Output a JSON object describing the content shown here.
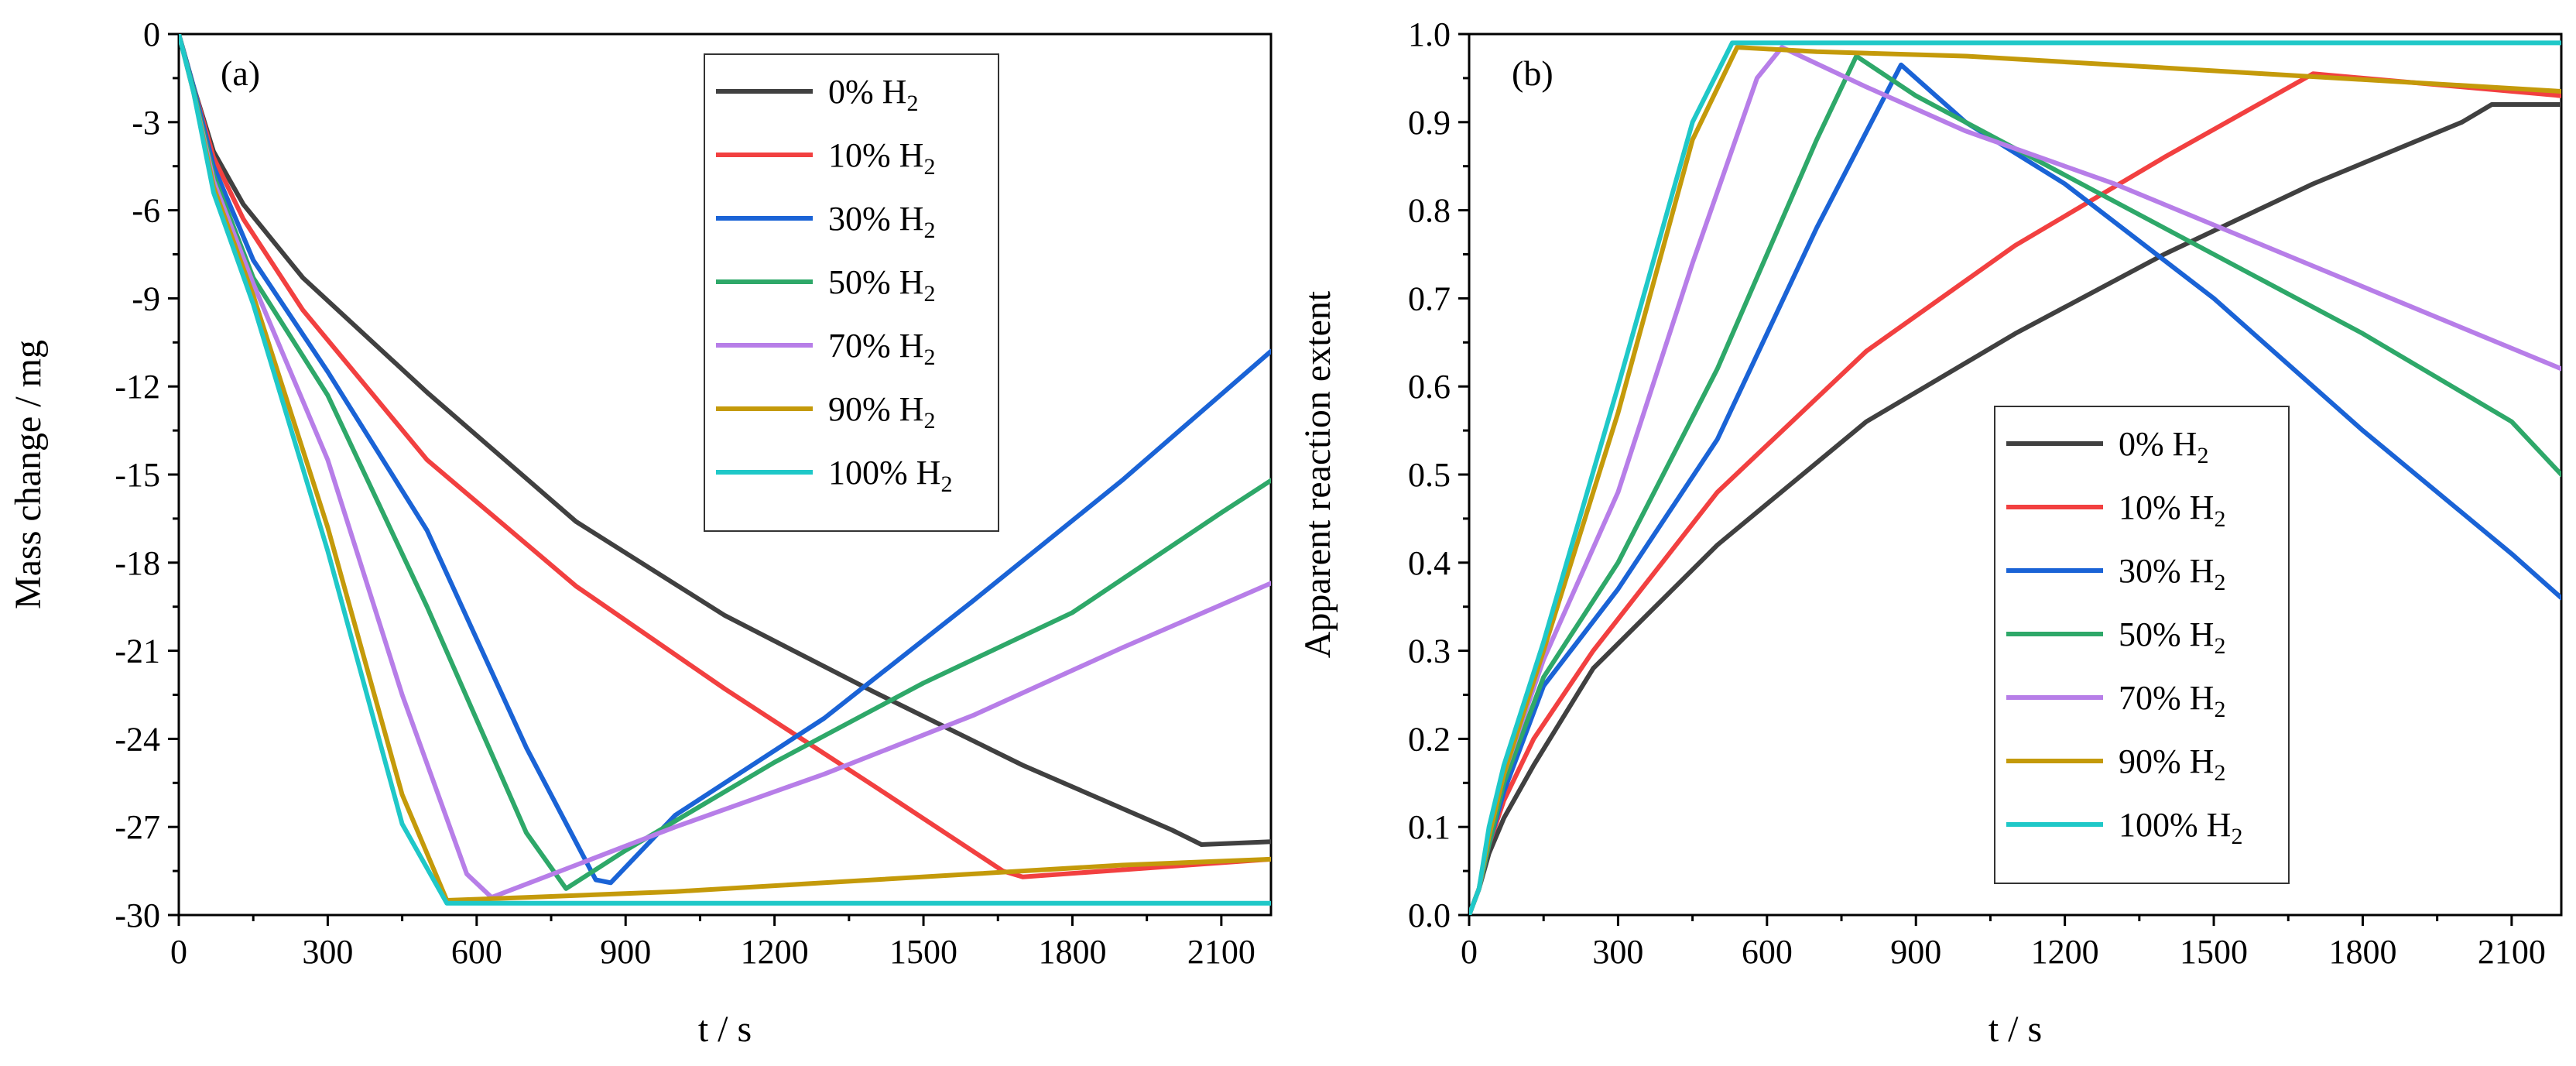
{
  "chart_data": [
    {
      "type": "line",
      "panel_label": "(a)",
      "xlabel": "t / s",
      "ylabel": "Mass change / mg",
      "xlim": [
        0,
        2200
      ],
      "ylim": [
        -30,
        0
      ],
      "xticks": [
        "0",
        "300",
        "600",
        "900",
        "1200",
        "1500",
        "1800",
        "2100"
      ],
      "yticks": [
        "0",
        "-3",
        "-6",
        "-9",
        "-12",
        "-15",
        "-18",
        "-21",
        "-24",
        "-27",
        "-30"
      ],
      "legend_position": "top-right",
      "series": [
        {
          "name": "0% H",
          "subscript": "2",
          "color": "#404040",
          "x": [
            0,
            30,
            70,
            130,
            250,
            500,
            800,
            1100,
            1400,
            1700,
            2000,
            2060,
            2200
          ],
          "y": [
            0,
            -1.8,
            -4.0,
            -5.8,
            -8.3,
            -12.2,
            -16.6,
            -19.8,
            -22.4,
            -24.9,
            -27.1,
            -27.6,
            -27.5
          ]
        },
        {
          "name": "10% H",
          "subscript": "2",
          "color": "#f24040",
          "x": [
            0,
            30,
            70,
            130,
            250,
            500,
            800,
            1100,
            1400,
            1660,
            1700,
            2200
          ],
          "y": [
            0,
            -1.8,
            -4.2,
            -6.3,
            -9.4,
            -14.5,
            -18.8,
            -22.3,
            -25.6,
            -28.5,
            -28.7,
            -28.1
          ]
        },
        {
          "name": "30% H",
          "subscript": "2",
          "color": "#1a63d6",
          "x": [
            0,
            30,
            70,
            150,
            300,
            500,
            700,
            840,
            870,
            1000,
            1300,
            1600,
            1900,
            2200
          ],
          "y": [
            0,
            -1.8,
            -4.5,
            -7.7,
            -11.5,
            -16.9,
            -24.3,
            -28.8,
            -28.9,
            -26.6,
            -23.3,
            -19.3,
            -15.2,
            -10.8
          ]
        },
        {
          "name": "50% H",
          "subscript": "2",
          "color": "#2ea869",
          "x": [
            0,
            30,
            70,
            150,
            300,
            500,
            700,
            780,
            900,
            1200,
            1500,
            1800,
            2100,
            2200
          ],
          "y": [
            0,
            -1.9,
            -4.8,
            -8.3,
            -12.3,
            -19.5,
            -27.2,
            -29.1,
            -27.8,
            -24.8,
            -22.1,
            -19.7,
            -16.3,
            -15.2
          ]
        },
        {
          "name": "70% H",
          "subscript": "2",
          "color": "#b77ee8",
          "x": [
            0,
            30,
            70,
            150,
            300,
            450,
            580,
            630,
            800,
            1000,
            1300,
            1600,
            1900,
            2200
          ],
          "y": [
            0,
            -2.0,
            -5.0,
            -8.5,
            -14.5,
            -22.5,
            -28.6,
            -29.4,
            -28.3,
            -27.0,
            -25.2,
            -23.2,
            -20.9,
            -18.7
          ]
        },
        {
          "name": "90% H",
          "subscript": "2",
          "color": "#c49a0a",
          "x": [
            0,
            30,
            70,
            150,
            300,
            450,
            540,
            700,
            1000,
            1300,
            1600,
            1900,
            2200
          ],
          "y": [
            0,
            -2.0,
            -5.2,
            -8.9,
            -16.8,
            -25.9,
            -29.5,
            -29.4,
            -29.2,
            -28.9,
            -28.6,
            -28.3,
            -28.1
          ]
        },
        {
          "name": "100% H",
          "subscript": "2",
          "color": "#1fc8c8",
          "x": [
            0,
            30,
            70,
            150,
            300,
            450,
            540,
            800,
            1200,
            1600,
            2000,
            2200
          ],
          "y": [
            0,
            -2.0,
            -5.4,
            -9.2,
            -17.6,
            -26.9,
            -29.6,
            -29.6,
            -29.6,
            -29.6,
            -29.6,
            -29.6
          ]
        }
      ]
    },
    {
      "type": "line",
      "panel_label": "(b)",
      "xlabel": "t / s",
      "ylabel": "Apparent reaction extent",
      "xlim": [
        0,
        2200
      ],
      "ylim": [
        0,
        1.0
      ],
      "xticks": [
        "0",
        "300",
        "600",
        "900",
        "1200",
        "1500",
        "1800",
        "2100"
      ],
      "yticks": [
        "0.0",
        "0.1",
        "0.2",
        "0.3",
        "0.4",
        "0.5",
        "0.6",
        "0.7",
        "0.8",
        "0.9",
        "1.0"
      ],
      "legend_position": "lower-center",
      "series": [
        {
          "name": "0% H",
          "subscript": "2",
          "color": "#404040",
          "x": [
            0,
            20,
            40,
            70,
            130,
            250,
            500,
            800,
            1100,
            1400,
            1700,
            2000,
            2060,
            2200
          ],
          "y": [
            0,
            0.03,
            0.07,
            0.11,
            0.17,
            0.28,
            0.42,
            0.56,
            0.66,
            0.75,
            0.83,
            0.9,
            0.92,
            0.92
          ]
        },
        {
          "name": "10% H",
          "subscript": "2",
          "color": "#f24040",
          "x": [
            0,
            20,
            40,
            70,
            130,
            250,
            500,
            800,
            1100,
            1400,
            1700,
            2200
          ],
          "y": [
            0,
            0.03,
            0.08,
            0.13,
            0.2,
            0.3,
            0.48,
            0.64,
            0.76,
            0.86,
            0.955,
            0.93
          ]
        },
        {
          "name": "30% H",
          "subscript": "2",
          "color": "#1a63d6",
          "x": [
            0,
            20,
            40,
            70,
            150,
            300,
            500,
            700,
            870,
            900,
            1000,
            1200,
            1500,
            1800,
            2100,
            2200
          ],
          "y": [
            0,
            0.03,
            0.08,
            0.14,
            0.26,
            0.37,
            0.54,
            0.78,
            0.965,
            0.95,
            0.9,
            0.83,
            0.7,
            0.55,
            0.41,
            0.36
          ]
        },
        {
          "name": "50% H",
          "subscript": "2",
          "color": "#2ea869",
          "x": [
            0,
            20,
            40,
            70,
            150,
            300,
            500,
            700,
            780,
            900,
            1200,
            1500,
            1800,
            2100,
            2200
          ],
          "y": [
            0,
            0.03,
            0.08,
            0.15,
            0.27,
            0.4,
            0.62,
            0.88,
            0.975,
            0.93,
            0.84,
            0.75,
            0.66,
            0.56,
            0.5
          ]
        },
        {
          "name": "70% H",
          "subscript": "2",
          "color": "#b77ee8",
          "x": [
            0,
            20,
            40,
            70,
            150,
            300,
            450,
            580,
            630,
            800,
            1000,
            1300,
            1600,
            1900,
            2200
          ],
          "y": [
            0,
            0.03,
            0.09,
            0.16,
            0.29,
            0.48,
            0.74,
            0.95,
            0.985,
            0.94,
            0.89,
            0.83,
            0.76,
            0.69,
            0.62
          ]
        },
        {
          "name": "90% H",
          "subscript": "2",
          "color": "#c49a0a",
          "x": [
            0,
            20,
            40,
            70,
            150,
            300,
            450,
            540,
            700,
            1000,
            1300,
            1600,
            1900,
            2200
          ],
          "y": [
            0,
            0.03,
            0.09,
            0.16,
            0.3,
            0.57,
            0.88,
            0.985,
            0.98,
            0.975,
            0.965,
            0.955,
            0.945,
            0.935
          ]
        },
        {
          "name": "100% H",
          "subscript": "2",
          "color": "#1fc8c8",
          "x": [
            0,
            20,
            40,
            70,
            150,
            300,
            450,
            530,
            700,
            1000,
            1300,
            1600,
            1900,
            2200
          ],
          "y": [
            0,
            0.03,
            0.1,
            0.17,
            0.31,
            0.6,
            0.9,
            0.99,
            0.99,
            0.99,
            0.99,
            0.99,
            0.99,
            0.99
          ]
        }
      ]
    }
  ]
}
